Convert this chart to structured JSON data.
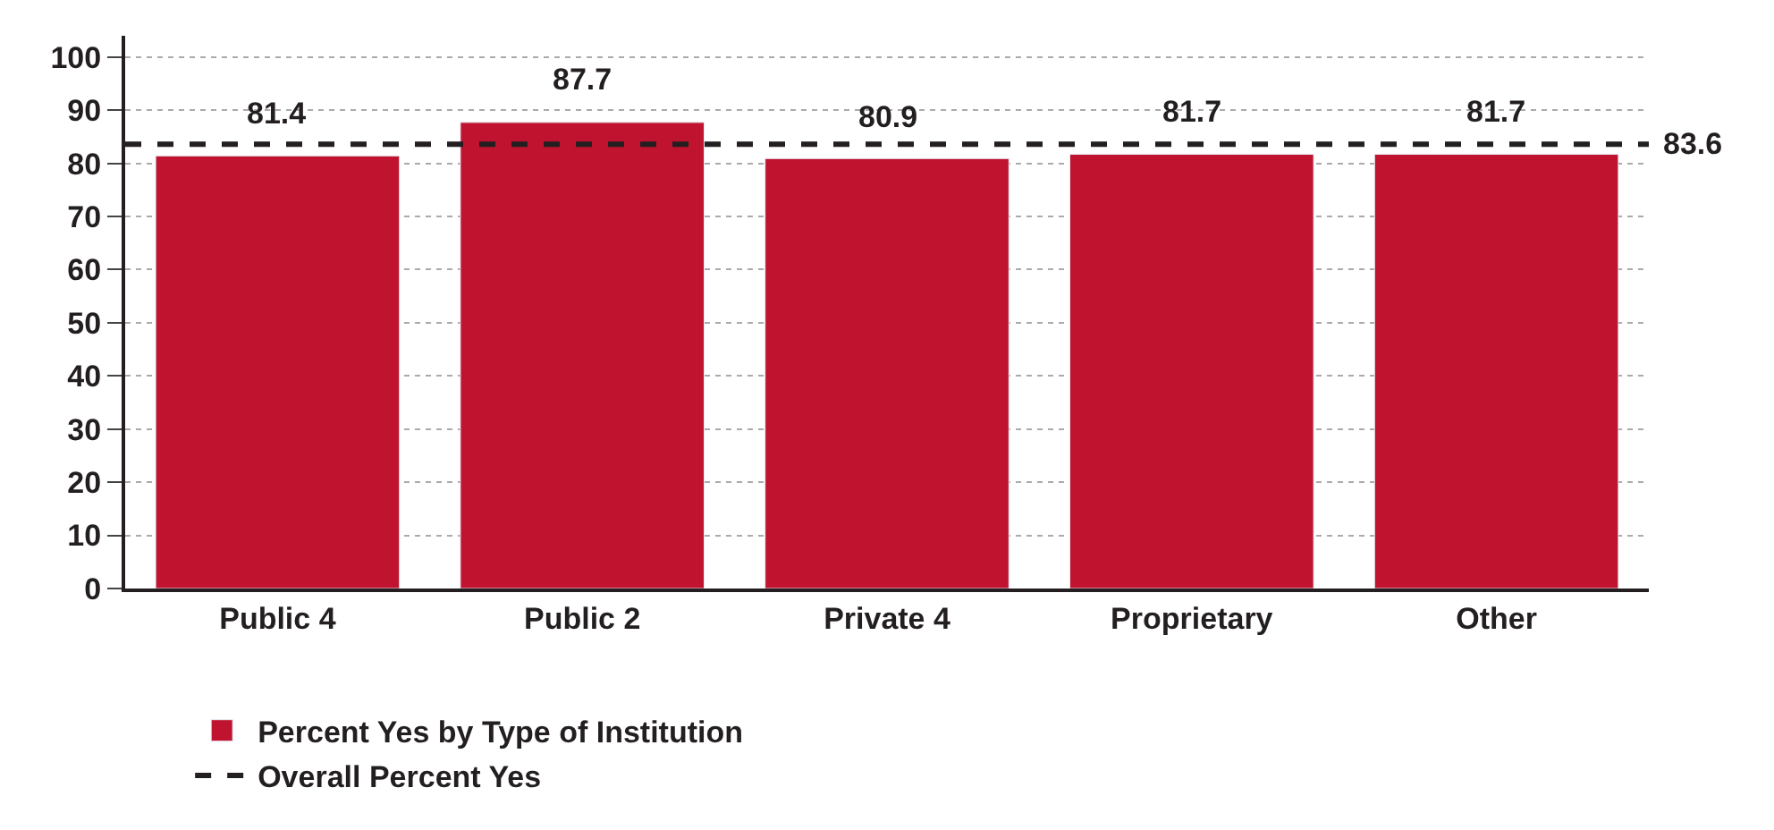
{
  "chart_data": {
    "type": "bar",
    "categories": [
      "Public 4",
      "Public 2",
      "Private 4",
      "Proprietary",
      "Other"
    ],
    "series": [
      {
        "name": "Percent Yes by Type of Institution",
        "color": "#c0132f",
        "values": [
          81.4,
          87.7,
          80.9,
          81.7,
          81.7
        ]
      }
    ],
    "data_labels": true,
    "ref_lines": [
      {
        "axis": "y",
        "value": 83.6,
        "label": "Overall Percent Yes",
        "color": "#231f20",
        "line_style": "dashed"
      }
    ],
    "annotations": [
      "83.6"
    ],
    "ylim": [
      0,
      104
    ],
    "yticks": [
      0,
      10,
      20,
      30,
      40,
      50,
      60,
      70,
      80,
      90,
      100
    ],
    "grid": "y",
    "legend": "bottom"
  }
}
